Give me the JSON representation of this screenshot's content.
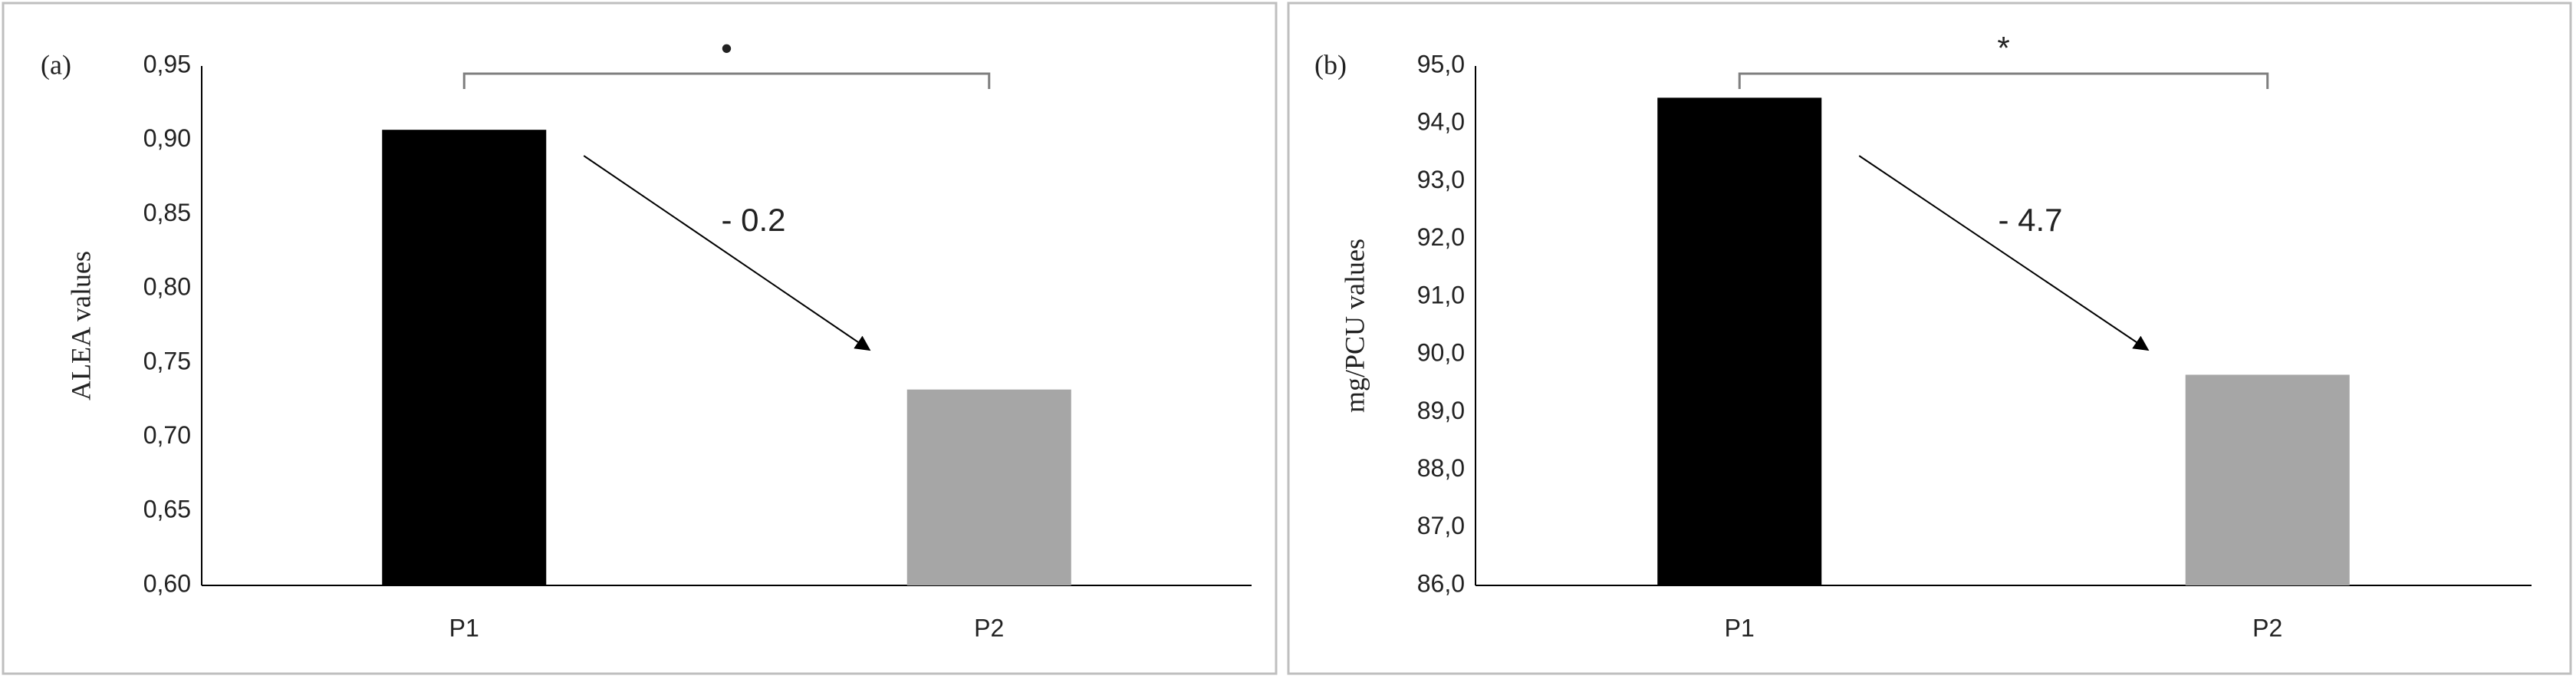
{
  "chart_data": [
    {
      "type": "bar",
      "panel_label": "(a)",
      "y_label": "ALEA values",
      "categories": [
        "P1",
        "P2"
      ],
      "values": [
        0.907,
        0.732
      ],
      "colors": [
        "#000000",
        "#a6a6a6"
      ],
      "ylim": [
        0.6,
        0.95
      ],
      "yticks": [
        {
          "value": 0.6,
          "label": "0,60"
        },
        {
          "value": 0.65,
          "label": "0,65"
        },
        {
          "value": 0.7,
          "label": "0,70"
        },
        {
          "value": 0.75,
          "label": "0,75"
        },
        {
          "value": 0.8,
          "label": "0,80"
        },
        {
          "value": 0.85,
          "label": "0,85"
        },
        {
          "value": 0.9,
          "label": "0,90"
        },
        {
          "value": 0.95,
          "label": "0,95"
        }
      ],
      "annotation": "- 0.2",
      "significance": "•",
      "grid": false
    },
    {
      "type": "bar",
      "panel_label": "(b)",
      "y_label": "mg/PCU values",
      "categories": [
        "P1",
        "P2"
      ],
      "values": [
        94.45,
        89.65
      ],
      "colors": [
        "#000000",
        "#a6a6a6"
      ],
      "ylim": [
        86.0,
        95.0
      ],
      "yticks": [
        {
          "value": 86.0,
          "label": "86,0"
        },
        {
          "value": 87.0,
          "label": "87,0"
        },
        {
          "value": 88.0,
          "label": "88,0"
        },
        {
          "value": 89.0,
          "label": "89,0"
        },
        {
          "value": 90.0,
          "label": "90,0"
        },
        {
          "value": 91.0,
          "label": "91,0"
        },
        {
          "value": 92.0,
          "label": "92,0"
        },
        {
          "value": 93.0,
          "label": "93,0"
        },
        {
          "value": 94.0,
          "label": "94,0"
        },
        {
          "value": 95.0,
          "label": "95,0"
        }
      ],
      "annotation": "- 4.7",
      "significance": "*",
      "grid": false
    }
  ]
}
